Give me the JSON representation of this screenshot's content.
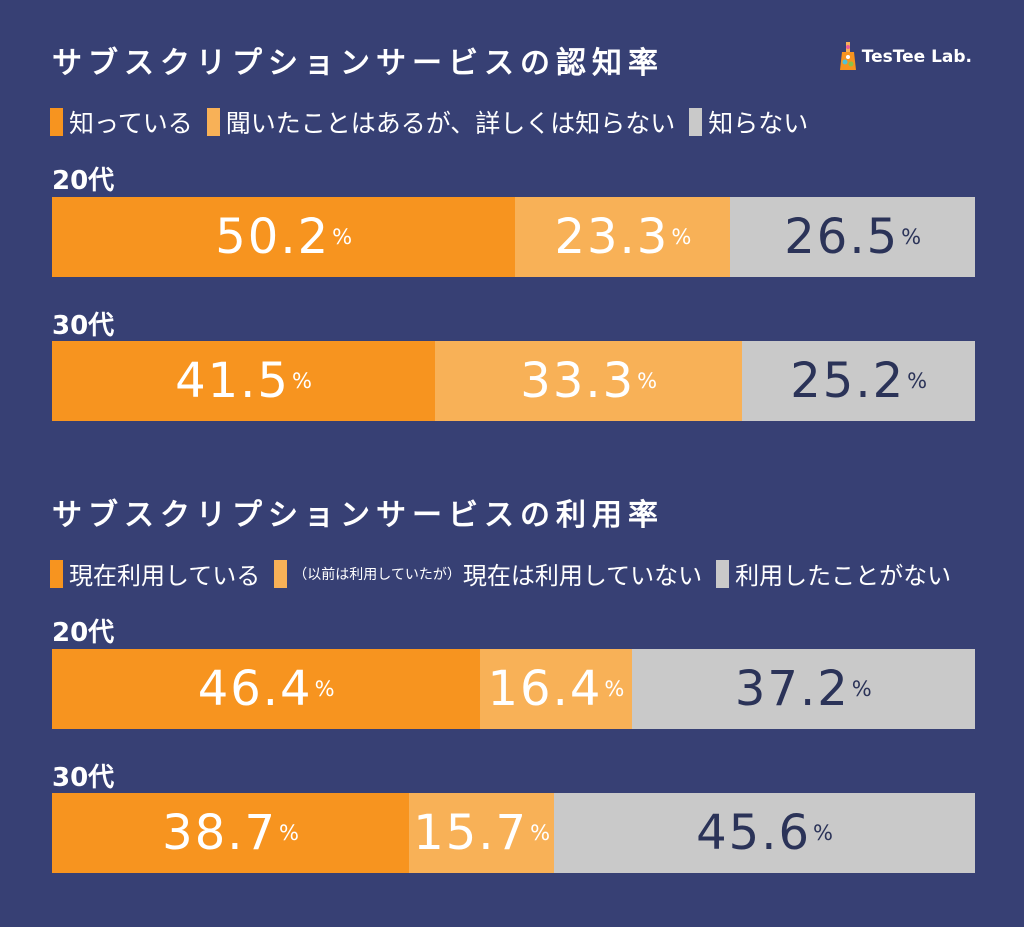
{
  "logo": {
    "text": "TesTee Lab."
  },
  "colors": {
    "background": "#374074",
    "knows": "#f7941f",
    "partial": "#f8b157",
    "not": "#c9c9c9",
    "dark_text": "#2b3358"
  },
  "chart_data": [
    {
      "type": "bar",
      "orientation": "horizontal-stacked-100",
      "title": "サブスクリプションサービスの認知率",
      "legend": {
        "position": "top"
      },
      "series": [
        {
          "name": "知っている",
          "note": "",
          "color": "#f7941f",
          "values": [
            50.2,
            41.5
          ]
        },
        {
          "name": "聞いたことはあるが、詳しくは知らない",
          "note": "",
          "color": "#f8b157",
          "values": [
            23.3,
            33.3
          ]
        },
        {
          "name": "知らない",
          "note": "",
          "color": "#c9c9c9",
          "values": [
            26.5,
            25.2
          ]
        }
      ],
      "categories": [
        "20代",
        "30代"
      ],
      "unit": "%"
    },
    {
      "type": "bar",
      "orientation": "horizontal-stacked-100",
      "title": "サブスクリプションサービスの利用率",
      "legend": {
        "position": "top"
      },
      "series": [
        {
          "name": "現在利用している",
          "note": "",
          "color": "#f7941f",
          "values": [
            46.4,
            38.7
          ]
        },
        {
          "name": "現在は利用していない",
          "note": "（以前は利用していたが）",
          "color": "#f8b157",
          "values": [
            16.4,
            15.7
          ]
        },
        {
          "name": "利用したことがない",
          "note": "",
          "color": "#c9c9c9",
          "values": [
            37.2,
            45.6
          ]
        }
      ],
      "categories": [
        "20代",
        "30代"
      ],
      "unit": "%"
    }
  ]
}
